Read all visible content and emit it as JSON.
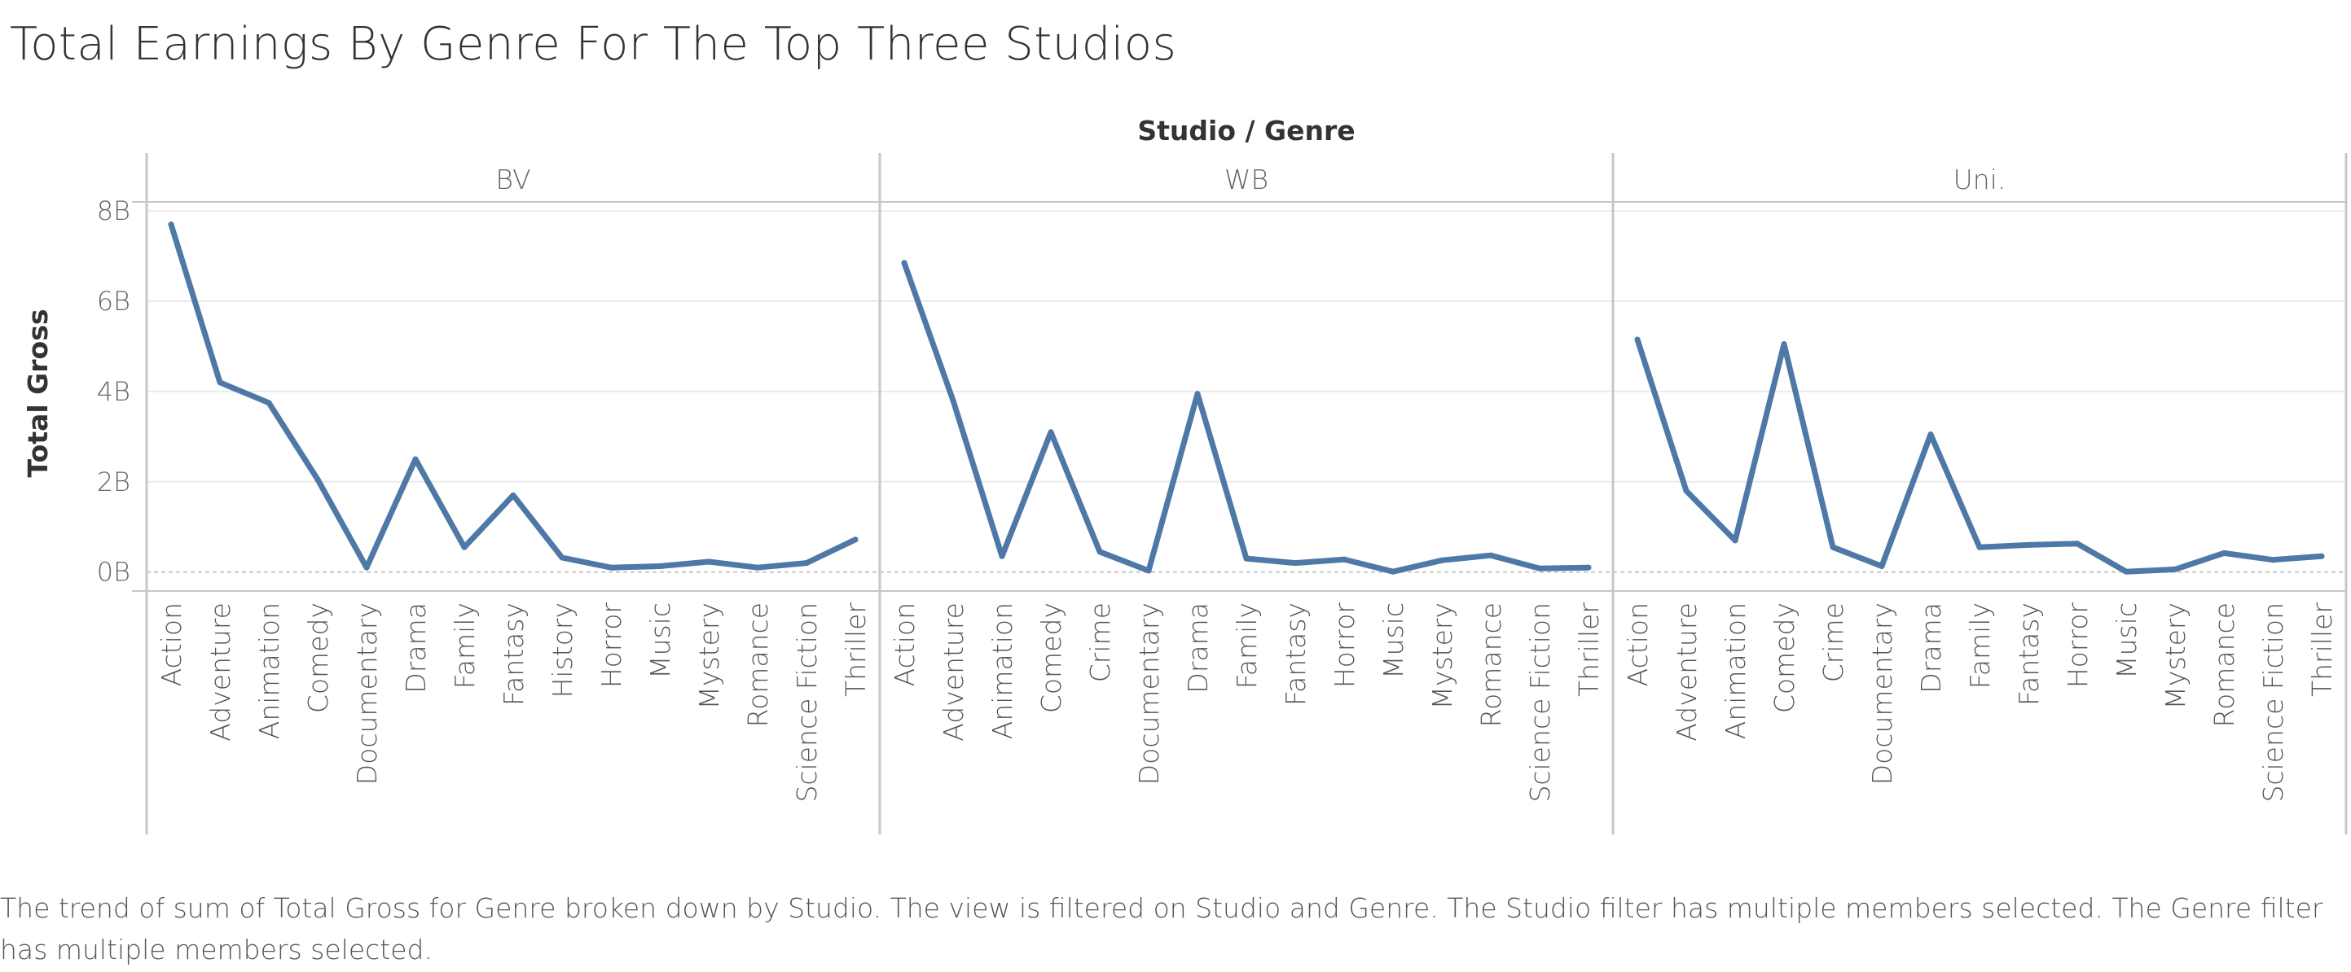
{
  "title": "Total Earnings By Genre For The Top Three Studios",
  "caption": "The trend of sum of Total Gross for Genre broken down by Studio. The view is filtered on Studio and Genre. The Studio filter has multiple members selected. The Genre filter has multiple members selected.",
  "colors": {
    "line": "#4e79a7",
    "gridline": "#ebebeb",
    "zeroline": "#c8c8c8",
    "divider": "#c7c7c7"
  },
  "chart_data": {
    "type": "line",
    "column_header": "Studio / Genre",
    "ylabel": "Total Gross",
    "yticks": [
      "0B",
      "2B",
      "4B",
      "6B",
      "8B"
    ],
    "ytick_values": [
      0,
      2,
      4,
      6,
      8
    ],
    "ylim": [
      -0.42,
      8.2
    ],
    "y_unit": "billions",
    "grid": true,
    "panels": [
      {
        "studio": "BV",
        "genres": [
          "Action",
          "Adventure",
          "Animation",
          "Comedy",
          "Documentary",
          "Drama",
          "Family",
          "Fantasy",
          "History",
          "Horror",
          "Music",
          "Mystery",
          "Romance",
          "Science Fiction",
          "Thriller"
        ],
        "values": [
          7.7,
          4.2,
          3.75,
          2.05,
          0.1,
          2.5,
          0.55,
          1.7,
          0.32,
          0.1,
          0.13,
          0.23,
          0.1,
          0.2,
          0.72
        ]
      },
      {
        "studio": "WB",
        "genres": [
          "Action",
          "Adventure",
          "Animation",
          "Comedy",
          "Crime",
          "Documentary",
          "Drama",
          "Family",
          "Fantasy",
          "Horror",
          "Music",
          "Mystery",
          "Romance",
          "Science Fiction",
          "Thriller"
        ],
        "values": [
          6.85,
          3.8,
          0.35,
          3.1,
          0.45,
          0.03,
          3.95,
          0.3,
          0.2,
          0.28,
          0.01,
          0.26,
          0.37,
          0.08,
          0.1
        ]
      },
      {
        "studio": "Uni.",
        "genres": [
          "Action",
          "Adventure",
          "Animation",
          "Comedy",
          "Crime",
          "Documentary",
          "Drama",
          "Family",
          "Fantasy",
          "Horror",
          "Music",
          "Mystery",
          "Romance",
          "Science Fiction",
          "Thriller"
        ],
        "values": [
          5.15,
          1.8,
          0.7,
          5.05,
          0.55,
          0.13,
          3.05,
          0.55,
          0.6,
          0.63,
          0.01,
          0.06,
          0.42,
          0.27,
          0.35
        ]
      }
    ]
  }
}
